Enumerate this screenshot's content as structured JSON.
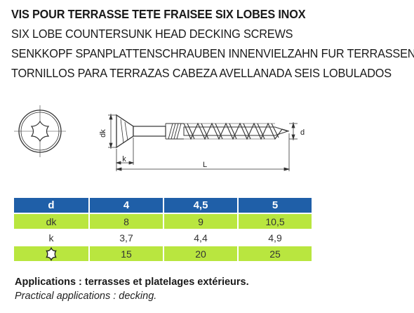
{
  "titles": {
    "fr": "VIS POUR TERRASSE TETE FRAISEE SIX LOBES INOX",
    "en": "SIX LOBE COUNTERSUNK HEAD DECKING SCREWS",
    "de": "SENKKOPF SPANPLATTENSCHRAUBEN INNENVIELZAHN FUR TERRASSEN",
    "es": "TORNILLOS PARA TERRAZAS CABEZA AVELLANADA SEIS LOBULADOS"
  },
  "drawing": {
    "label_dk": "dk",
    "label_k": "k",
    "label_L": "L",
    "label_d": "d",
    "head_icon": "torx-head-top-view-icon",
    "screw_icon": "countersunk-screw-side-view-icon"
  },
  "table": {
    "colors": {
      "header": "#1f5fa8",
      "lime": "#b9e63f"
    },
    "header": {
      "label": "d",
      "values": [
        "4",
        "4,5",
        "5"
      ]
    },
    "rows": [
      {
        "label": "dk",
        "values": [
          "8",
          "9",
          "10,5"
        ],
        "style": "lime"
      },
      {
        "label": "k",
        "values": [
          "3,7",
          "4,4",
          "4,9"
        ],
        "style": "white"
      },
      {
        "label_icon": "torx-star-icon",
        "values": [
          "15",
          "20",
          "25"
        ],
        "style": "lime"
      }
    ]
  },
  "applications": {
    "fr": "Applications : terrasses et platelages extérieurs.",
    "en": "Practical applications : decking."
  }
}
